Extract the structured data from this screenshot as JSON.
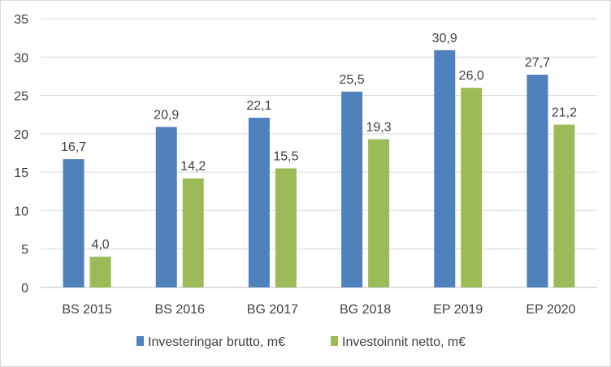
{
  "chart_data": {
    "type": "bar",
    "categories": [
      "BS 2015",
      "BS 2016",
      "BG 2017",
      "BG 2018",
      "EP 2019",
      "EP 2020"
    ],
    "series": [
      {
        "name": "Investeringar brutto, m€",
        "values": [
          16.7,
          20.9,
          22.1,
          25.5,
          30.9,
          27.7
        ],
        "labels": [
          "16,7",
          "20,9",
          "22,1",
          "25,5",
          "30,9",
          "27,7"
        ],
        "color": "#4f81bd"
      },
      {
        "name": "Investoinnit netto, m€",
        "values": [
          4.0,
          14.2,
          15.5,
          19.3,
          26.0,
          21.2
        ],
        "labels": [
          "4,0",
          "14,2",
          "15,5",
          "19,3",
          "26,0",
          "21,2"
        ],
        "color": "#9bbb59"
      }
    ],
    "yticks": [
      "0",
      "5",
      "10",
      "15",
      "20",
      "25",
      "30",
      "35"
    ],
    "ylim": [
      0,
      35
    ],
    "grid": true,
    "legend": "bottom",
    "title": "",
    "xlabel": "",
    "ylabel": ""
  }
}
